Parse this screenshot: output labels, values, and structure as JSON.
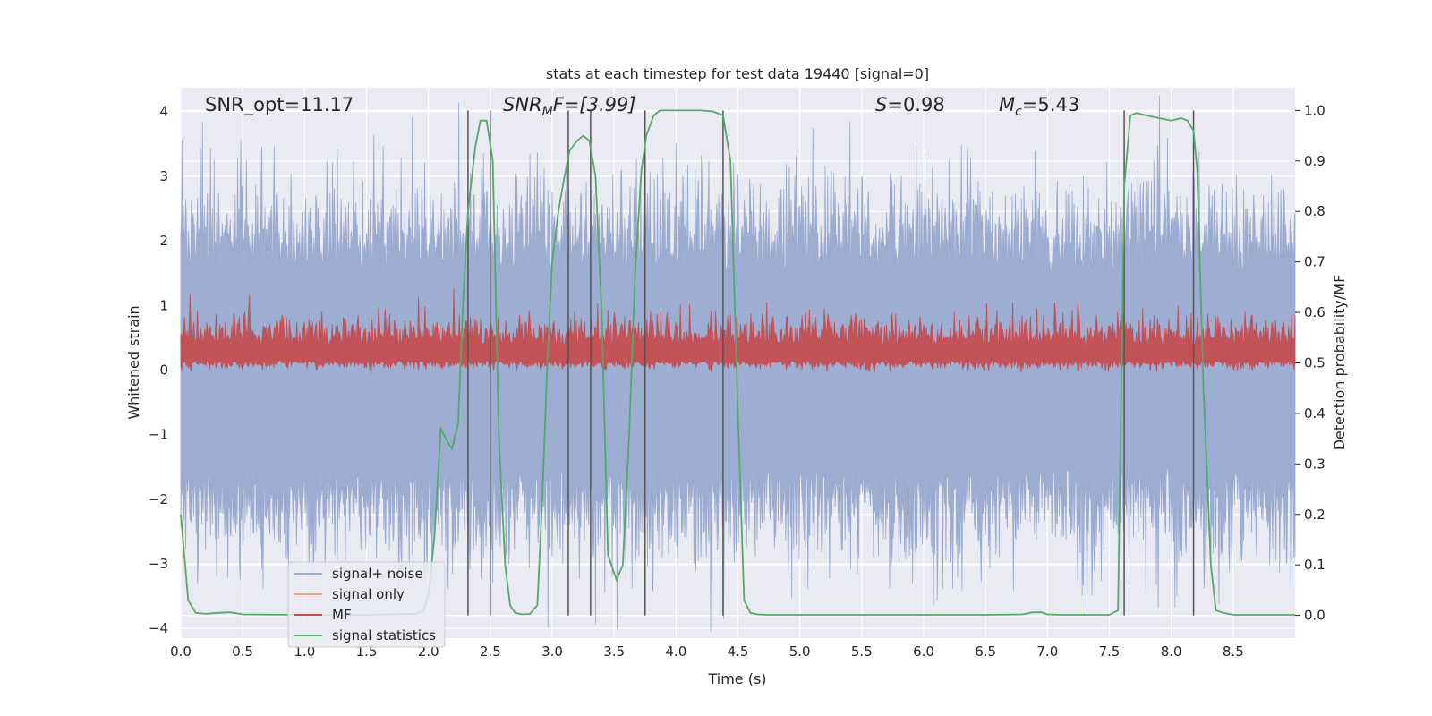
{
  "chart_data": {
    "type": "line",
    "title": "stats at each timestep for test data 19440 [signal=0]",
    "xlabel": "Time (s)",
    "ylabel_left": "Whitened strain",
    "ylabel_right": "Detection probability/MF",
    "xlim": [
      0.0,
      9.0
    ],
    "ylim_left": [
      -4.15,
      4.37
    ],
    "ylim_right": [
      -0.045,
      1.045
    ],
    "x_ticks": [
      "0.0",
      "0.5",
      "1.0",
      "1.5",
      "2.0",
      "2.5",
      "3.0",
      "3.5",
      "4.0",
      "4.5",
      "5.0",
      "5.5",
      "6.0",
      "6.5",
      "7.0",
      "7.5",
      "8.0",
      "8.5"
    ],
    "y_ticks_left": [
      "−4",
      "−3",
      "−2",
      "−1",
      "0",
      "1",
      "2",
      "3",
      "4"
    ],
    "y_ticks_right": [
      "0.0",
      "0.1",
      "0.2",
      "0.3",
      "0.4",
      "0.5",
      "0.6",
      "0.7",
      "0.8",
      "0.9",
      "1.0"
    ],
    "grid": true,
    "annotations": {
      "snr_opt": "SNR_opt=11.17",
      "snr_mf_base": "SNR",
      "snr_mf_sub": "M",
      "snr_mf_rest": "F=[3.99]",
      "s_italic": "S",
      "s_value": "=0.98",
      "mc_base": "M",
      "mc_sub": "c",
      "mc_value": "=5.43"
    },
    "legend": {
      "placement": "lower-left",
      "entries": [
        "signal+ noise",
        "signal only",
        "MF",
        "signal statistics"
      ]
    },
    "colors": {
      "signal_noise": "#9aabd0",
      "signal_only": "#e8a88a",
      "mf": "#c44e52",
      "signal_statistics": "#55a868",
      "vlines": "#555555",
      "plot_bg": "#eaeaf2"
    },
    "series": [
      {
        "name": "signal statistics",
        "axis": "right",
        "x": [
          0.0,
          0.06,
          0.12,
          0.2,
          0.3,
          0.4,
          0.5,
          1.0,
          1.5,
          1.9,
          1.96,
          2.0,
          2.05,
          2.1,
          2.14,
          2.19,
          2.24,
          2.28,
          2.32,
          2.38,
          2.42,
          2.47,
          2.52,
          2.57,
          2.62,
          2.66,
          2.7,
          2.76,
          2.82,
          2.88,
          2.92,
          2.96,
          3.0,
          3.05,
          3.1,
          3.14,
          3.2,
          3.25,
          3.3,
          3.35,
          3.4,
          3.45,
          3.52,
          3.57,
          3.62,
          3.67,
          3.72,
          3.76,
          3.82,
          3.87,
          3.92,
          4.0,
          4.1,
          4.2,
          4.3,
          4.38,
          4.44,
          4.5,
          4.55,
          4.6,
          4.66,
          4.75,
          5.0,
          5.5,
          6.0,
          6.5,
          6.8,
          6.88,
          6.95,
          7.0,
          7.1,
          7.5,
          7.57,
          7.62,
          7.67,
          7.72,
          7.8,
          7.9,
          8.0,
          8.08,
          8.13,
          8.18,
          8.21,
          8.26,
          8.32,
          8.36,
          8.42,
          8.5,
          8.7,
          9.0
        ],
        "values": [
          0.2,
          0.03,
          0.005,
          0.003,
          0.005,
          0.006,
          0.002,
          0.001,
          0.001,
          0.003,
          0.01,
          0.04,
          0.16,
          0.37,
          0.35,
          0.33,
          0.38,
          0.62,
          0.8,
          0.93,
          0.98,
          0.98,
          0.9,
          0.35,
          0.1,
          0.02,
          0.005,
          0.002,
          0.003,
          0.02,
          0.23,
          0.5,
          0.7,
          0.8,
          0.87,
          0.92,
          0.94,
          0.95,
          0.94,
          0.87,
          0.6,
          0.12,
          0.07,
          0.1,
          0.35,
          0.68,
          0.88,
          0.95,
          0.99,
          1.0,
          1.0,
          1.0,
          1.0,
          1.0,
          0.998,
          0.99,
          0.9,
          0.4,
          0.03,
          0.005,
          0.002,
          0.001,
          0.001,
          0.001,
          0.001,
          0.001,
          0.002,
          0.006,
          0.006,
          0.002,
          0.001,
          0.001,
          0.01,
          0.85,
          0.99,
          0.995,
          0.99,
          0.985,
          0.98,
          0.985,
          0.98,
          0.96,
          0.88,
          0.45,
          0.1,
          0.01,
          0.005,
          0.001,
          0.001,
          0.001
        ]
      }
    ],
    "vlines_x": [
      2.32,
      2.5,
      3.13,
      3.31,
      3.75,
      4.38,
      7.62,
      8.18
    ]
  }
}
